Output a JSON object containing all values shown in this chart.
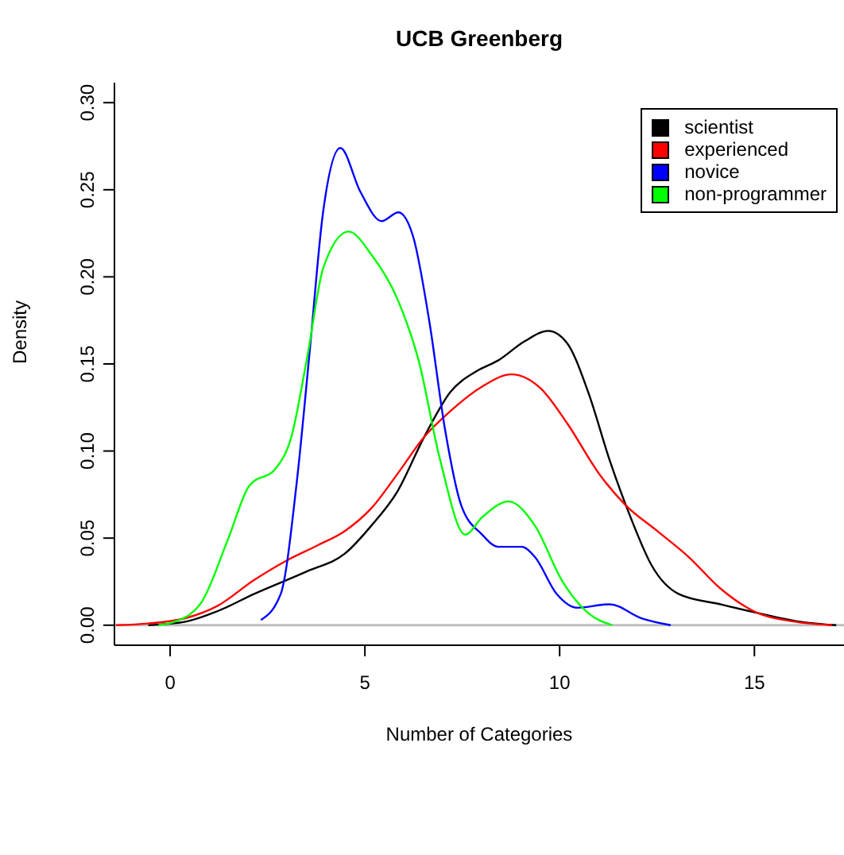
{
  "chart_data": {
    "type": "line",
    "title": "UCB Greenberg",
    "xlabel": "Number of Categories",
    "ylabel": "Density",
    "xlim": [
      -1.43,
      17.3
    ],
    "xticks": [
      0,
      5,
      10,
      15
    ],
    "ylim": [
      -0.0115,
      0.3115
    ],
    "yticks": [
      {
        "value": 0,
        "label": "0.00"
      },
      {
        "value": 0.05,
        "label": "0.05"
      },
      {
        "value": 0.1,
        "label": "0.10"
      },
      {
        "value": 0.15,
        "label": "0.15"
      },
      {
        "value": 0.2,
        "label": "0.20"
      },
      {
        "value": 0.25,
        "label": "0.25"
      },
      {
        "value": 0.3,
        "label": "0.30"
      }
    ],
    "grid": false,
    "legend": "top right",
    "marker": "none",
    "line_style": "solid",
    "ref_lines": [
      {
        "axis": "y",
        "value": 0,
        "color": "#bebebe"
      }
    ],
    "series": [
      {
        "name": "scientist",
        "color": "#000000",
        "x": [
          -0.56,
          0.39,
          1.21,
          2.16,
          3.52,
          4.48,
          5.16,
          5.84,
          6.52,
          7.2,
          7.88,
          8.42,
          9.1,
          9.71,
          10.19,
          10.73,
          11.28,
          11.82,
          12.37,
          13.05,
          14.13,
          15.08,
          16.17,
          17.1
        ],
        "values": [
          0,
          0.002,
          0.008,
          0.018,
          0.031,
          0.041,
          0.057,
          0.077,
          0.108,
          0.134,
          0.146,
          0.152,
          0.163,
          0.169,
          0.162,
          0.134,
          0.095,
          0.062,
          0.034,
          0.018,
          0.012,
          0.007,
          0.002,
          0
        ]
      },
      {
        "name": "experienced",
        "color": "#ff0000",
        "x": [
          -1.39,
          -0.56,
          0.39,
          1.21,
          2.16,
          2.98,
          3.8,
          4.48,
          5.16,
          5.84,
          6.52,
          7.2,
          8.01,
          8.76,
          9.51,
          10.19,
          11.01,
          11.69,
          12.51,
          13.32,
          14.13,
          15.08,
          16.04,
          16.99
        ],
        "values": [
          0,
          0.001,
          0.004,
          0.011,
          0.026,
          0.037,
          0.046,
          0.054,
          0.067,
          0.087,
          0.108,
          0.123,
          0.137,
          0.144,
          0.136,
          0.116,
          0.087,
          0.069,
          0.054,
          0.039,
          0.021,
          0.007,
          0.002,
          0
        ]
      },
      {
        "name": "novice",
        "color": "#0000ff",
        "x": [
          2.33,
          2.84,
          3.25,
          3.59,
          3.92,
          4.37,
          4.88,
          5.43,
          5.86,
          6.24,
          6.65,
          7.06,
          7.47,
          8.01,
          8.42,
          9.03,
          9.37,
          9.92,
          10.45,
          11.28,
          12.1,
          12.85
        ],
        "values": [
          0.003,
          0.018,
          0.082,
          0.159,
          0.236,
          0.274,
          0.249,
          0.232,
          0.237,
          0.223,
          0.175,
          0.112,
          0.069,
          0.052,
          0.045,
          0.045,
          0.039,
          0.018,
          0.01,
          0.012,
          0.004,
          0
        ]
      },
      {
        "name": "non-programmer",
        "color": "#00ff00",
        "x": [
          -0.3,
          0.12,
          0.8,
          1.48,
          2.03,
          2.71,
          3.11,
          3.52,
          3.93,
          4.58,
          5.16,
          5.84,
          6.38,
          6.93,
          7.58,
          8.01,
          8.69,
          9.37,
          10.05,
          10.73,
          11.35
        ],
        "values": [
          0,
          0.002,
          0.013,
          0.049,
          0.08,
          0.09,
          0.108,
          0.154,
          0.205,
          0.226,
          0.213,
          0.187,
          0.152,
          0.095,
          0.052,
          0.062,
          0.071,
          0.057,
          0.026,
          0.007,
          0
        ]
      }
    ]
  }
}
